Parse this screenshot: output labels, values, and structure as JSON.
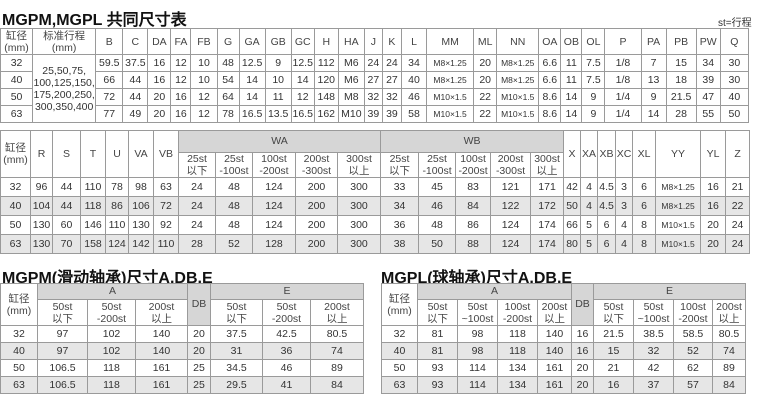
{
  "t1": {
    "title": "MGPM,MGPL 共同尺寸表",
    "note": "st=行程",
    "headers": [
      "缸径\n(mm)",
      "标准行程\n(mm)",
      "B",
      "C",
      "DA",
      "FA",
      "FB",
      "G",
      "GA",
      "GB",
      "GC",
      "H",
      "HA",
      "J",
      "K",
      "L",
      "MM",
      "ML",
      "NN",
      "OA",
      "OB",
      "OL",
      "P",
      "PA",
      "PB",
      "PW",
      "Q"
    ],
    "strokes": "25,50,75,\n100,125,150,\n175,200,250,\n300,350,400",
    "rows": [
      [
        "32",
        "59.5",
        "37.5",
        "16",
        "12",
        "10",
        "48",
        "12.5",
        "9",
        "12.5",
        "112",
        "M6",
        "24",
        "24",
        "34",
        "M8×1.25",
        "20",
        "M8×1.25",
        "6.6",
        "11",
        "7.5",
        "1/8",
        "7",
        "15",
        "34",
        "30"
      ],
      [
        "40",
        "66",
        "44",
        "16",
        "12",
        "10",
        "54",
        "14",
        "10",
        "14",
        "120",
        "M6",
        "27",
        "27",
        "40",
        "M8×1.25",
        "20",
        "M8×1.25",
        "6.6",
        "11",
        "7.5",
        "1/8",
        "13",
        "18",
        "39",
        "30"
      ],
      [
        "50",
        "72",
        "44",
        "20",
        "16",
        "12",
        "64",
        "14",
        "11",
        "12",
        "148",
        "M8",
        "32",
        "32",
        "46",
        "M10×1.5",
        "22",
        "M10×1.5",
        "8.6",
        "14",
        "9",
        "1/4",
        "9",
        "21.5",
        "47",
        "40"
      ],
      [
        "63",
        "77",
        "49",
        "20",
        "16",
        "12",
        "78",
        "16.5",
        "13.5",
        "16.5",
        "162",
        "M10",
        "39",
        "39",
        "58",
        "M10×1.5",
        "22",
        "M10×1.5",
        "8.6",
        "14",
        "9",
        "1/4",
        "14",
        "28",
        "55",
        "50"
      ]
    ]
  },
  "t2": {
    "headers_top": [
      "缸径\n(mm)",
      "R",
      "S",
      "T",
      "U",
      "VA",
      "VB",
      "WA",
      "WB",
      "X",
      "XA",
      "XB",
      "XC",
      "XL",
      "YY",
      "YL",
      "Z"
    ],
    "headers_sub": [
      "25st\n以下",
      "25st\n-100st",
      "100st\n-200st",
      "200st\n-300st",
      "300st\n以上",
      "25st\n以下",
      "25st\n-100st",
      "100st\n-200st",
      "200st\n-300st",
      "300st\n以上"
    ],
    "rows": [
      [
        "32",
        "96",
        "44",
        "110",
        "78",
        "98",
        "63",
        "24",
        "48",
        "124",
        "200",
        "300",
        "33",
        "45",
        "83",
        "121",
        "171",
        "42",
        "4",
        "4.5",
        "3",
        "6",
        "M8×1.25",
        "16",
        "21"
      ],
      [
        "40",
        "104",
        "44",
        "118",
        "86",
        "106",
        "72",
        "24",
        "48",
        "124",
        "200",
        "300",
        "34",
        "46",
        "84",
        "122",
        "172",
        "50",
        "4",
        "4.5",
        "3",
        "6",
        "M8×1.25",
        "16",
        "22"
      ],
      [
        "50",
        "130",
        "60",
        "146",
        "110",
        "130",
        "92",
        "24",
        "48",
        "124",
        "200",
        "300",
        "36",
        "48",
        "86",
        "124",
        "174",
        "66",
        "5",
        "6",
        "4",
        "8",
        "M10×1.5",
        "20",
        "24"
      ],
      [
        "63",
        "130",
        "70",
        "158",
        "124",
        "142",
        "110",
        "28",
        "52",
        "128",
        "200",
        "300",
        "38",
        "50",
        "88",
        "124",
        "174",
        "80",
        "5",
        "6",
        "4",
        "8",
        "M10×1.5",
        "20",
        "24"
      ]
    ]
  },
  "t3": {
    "title": "MGPM(滑动轴承)尺寸A,DB,E",
    "headers_top": [
      "缸径\n(mm)",
      "A",
      "DB",
      "E"
    ],
    "headers_sub": [
      "50st\n以下",
      "50st\n-200st",
      "200st\n以上",
      "50st\n以下",
      "50st\n-200st",
      "200st\n以上"
    ],
    "rows": [
      [
        "32",
        "97",
        "102",
        "140",
        "20",
        "37.5",
        "42.5",
        "80.5"
      ],
      [
        "40",
        "97",
        "102",
        "140",
        "20",
        "31",
        "36",
        "74"
      ],
      [
        "50",
        "106.5",
        "118",
        "161",
        "25",
        "34.5",
        "46",
        "89"
      ],
      [
        "63",
        "106.5",
        "118",
        "161",
        "25",
        "29.5",
        "41",
        "84"
      ]
    ]
  },
  "t4": {
    "title": "MGPL(球轴承)尺寸A,DB,E",
    "headers_top": [
      "缸径\n(mm)",
      "A",
      "DB",
      "E"
    ],
    "headers_sub": [
      "50st\n以下",
      "50st\n~100st",
      "100st\n-200st",
      "200st\n以上",
      "50st\n以下",
      "50st\n~100st",
      "100st\n-200st",
      "200st\n以上"
    ],
    "rows": [
      [
        "32",
        "81",
        "98",
        "118",
        "140",
        "16",
        "21.5",
        "38.5",
        "58.5",
        "80.5"
      ],
      [
        "40",
        "81",
        "98",
        "118",
        "140",
        "16",
        "15",
        "32",
        "52",
        "74"
      ],
      [
        "50",
        "93",
        "114",
        "134",
        "161",
        "20",
        "21",
        "42",
        "62",
        "89"
      ],
      [
        "63",
        "93",
        "114",
        "134",
        "161",
        "20",
        "16",
        "37",
        "57",
        "84"
      ]
    ]
  }
}
